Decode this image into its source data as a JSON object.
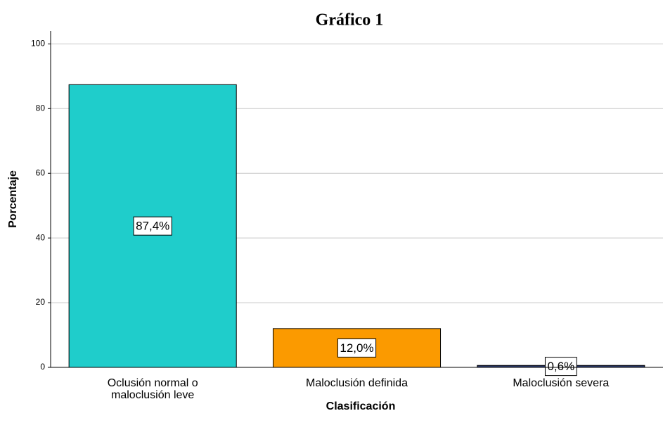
{
  "chart_data": {
    "type": "bar",
    "title": "Gráfico 1",
    "x_label": "Clasificación",
    "y_label": "Porcentaje",
    "categories": [
      "Oclusión normal o\nmaloclusión leve",
      "Maloclusión definida",
      "Maloclusión severa"
    ],
    "values": [
      87.4,
      12.0,
      0.6
    ],
    "value_labels": [
      "87,4%",
      "12,0%",
      "0,6%"
    ],
    "colors": [
      "#1fcdcb",
      "#fb9a00",
      "#2b3a6b"
    ],
    "ylim": [
      0,
      104
    ],
    "yticks": [
      0,
      20,
      40,
      60,
      80,
      100
    ],
    "grid": true
  }
}
